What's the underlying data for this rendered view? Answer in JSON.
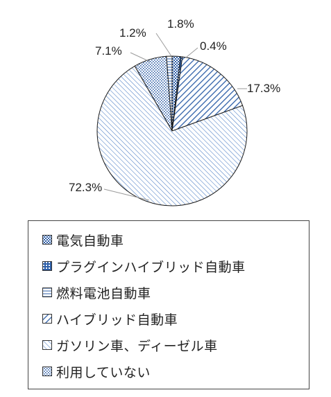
{
  "chart_data": {
    "type": "pie",
    "start_angle_deg": 0,
    "direction": "clockwise",
    "legend_position": "bottom",
    "slices": [
      {
        "label": "電気自動車",
        "value": 1.8,
        "value_label": "1.8%",
        "color": "#2e5fa8",
        "pattern": "dots"
      },
      {
        "label": "プラグインハイブリッド自動車",
        "value": 0.4,
        "value_label": "0.4%",
        "color": "#2e5fa8",
        "pattern": "crosshatch"
      },
      {
        "label": "ハイブリッド自動車",
        "value": 17.3,
        "value_label": "17.3%",
        "color": "#2e5fa8",
        "pattern": "diagonal-wide"
      },
      {
        "label": "ガソリン車、ディーゼル車",
        "value": 72.3,
        "value_label": "72.3%",
        "color": "#2e5fa8",
        "pattern": "diagonal-fine"
      },
      {
        "label": "利用していない",
        "value": 7.1,
        "value_label": "7.1%",
        "color": "#2e5fa8",
        "pattern": "grid"
      },
      {
        "label": "燃料電池自動車",
        "value": 1.2,
        "value_label": "1.2%",
        "color": "#2e5fa8",
        "pattern": "horizontal"
      }
    ],
    "legend": [
      {
        "label": "電気自動車",
        "pattern": "dots"
      },
      {
        "label": "プラグインハイブリッド自動車",
        "pattern": "crosshatch"
      },
      {
        "label": "燃料電池自動車",
        "pattern": "horizontal"
      },
      {
        "label": "ハイブリッド自動車",
        "pattern": "diagonal-wide"
      },
      {
        "label": "ガソリン車、ディーゼル車",
        "pattern": "diagonal-fine"
      },
      {
        "label": "利用していない",
        "pattern": "grid"
      }
    ]
  }
}
